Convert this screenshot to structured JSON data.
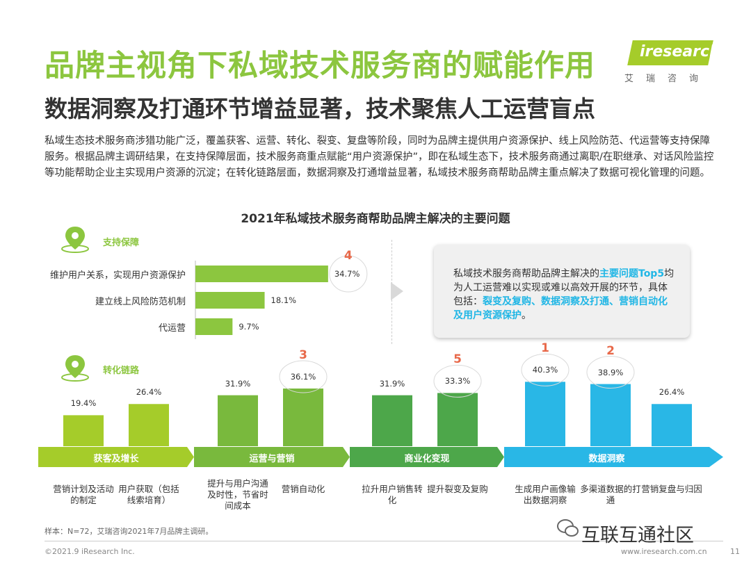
{
  "title": "品牌主视角下私域技术服务商的赋能作用",
  "subtitle": "数据洞察及打通环节增益显著，技术聚焦人工运营盲点",
  "intro": "私域生态技术服务商涉猎功能广泛，覆盖获客、运营、转化、裂变、复盘等阶段，同时为品牌主提供用户资源保护、线上风险防范、代运营等支持保障服务。根据品牌主调研结果，在支持保障层面，技术服务商重点赋能“用户资源保护”，即在私域生态下，技术服务商通过离职/在职继承、对话风险监控等功能帮助企业主实现用户资源的沉淀；在转化链路层面，数据洞察及打通增益显著，私域技术服务商帮助品牌主重点解决了数据可视化管理的问题。",
  "logo": {
    "brand": "iresearch",
    "cn": "艾瑞咨询"
  },
  "chart_data": {
    "type": "bar",
    "title": "2021年私域技术服务商帮助品牌主解决的主要问题",
    "support": {
      "label": "支持保障",
      "orientation": "horizontal",
      "categories": [
        "维护用户关系，实现用户资源保护",
        "建立线上风险防范机制",
        "代运营"
      ],
      "values": [
        34.7,
        18.1,
        9.7
      ],
      "value_labels": [
        "34.7%",
        "18.1%",
        "9.7%"
      ],
      "ranks": [
        "4",
        "",
        ""
      ]
    },
    "conversion": {
      "label": "转化链路",
      "orientation": "vertical",
      "categories": [
        "营销计划及活动的制定",
        "用户获取（包括线索培育）",
        "提升与用户沟通及时性，节省时间成本",
        "营销自动化",
        "拉升用户销售转化",
        "提升裂变及复购",
        "生成用户画像输出数据洞察",
        "多渠道数据的打通",
        "营销复盘与归因"
      ],
      "values": [
        19.4,
        26.4,
        31.9,
        36.1,
        31.9,
        33.3,
        40.3,
        38.9,
        26.4
      ],
      "value_labels": [
        "19.4%",
        "26.4%",
        "31.9%",
        "36.1%",
        "31.9%",
        "33.3%",
        "40.3%",
        "38.9%",
        "26.4%"
      ],
      "ranks": [
        "",
        "",
        "",
        "3",
        "",
        "5",
        "1",
        "2",
        ""
      ],
      "stages": [
        "获客及增长",
        "运营与营销",
        "商业化变现",
        "数据洞察"
      ],
      "stage_colors": [
        "#a5cc2a",
        "#79b93d",
        "#4da74a",
        "#29b7e6"
      ]
    }
  },
  "callout": {
    "t1": "私域技术服务商帮助品牌主解决的",
    "h1": "主要问题Top5",
    "t2": "均为人工运营难以实现或难以高效开展的环节，具体包括：",
    "h2": "裂变及复购、数据洞察及打通、营销自动化及用户资源保护",
    "t3": "。"
  },
  "note": "样本：N=72，艾瑞咨询2021年7月品牌主调研。",
  "footer": {
    "copyright": "©2021.9 iResearch Inc.",
    "url": "www.iresearch.com.cn",
    "page": "11"
  },
  "wechat": "互联互通社区"
}
